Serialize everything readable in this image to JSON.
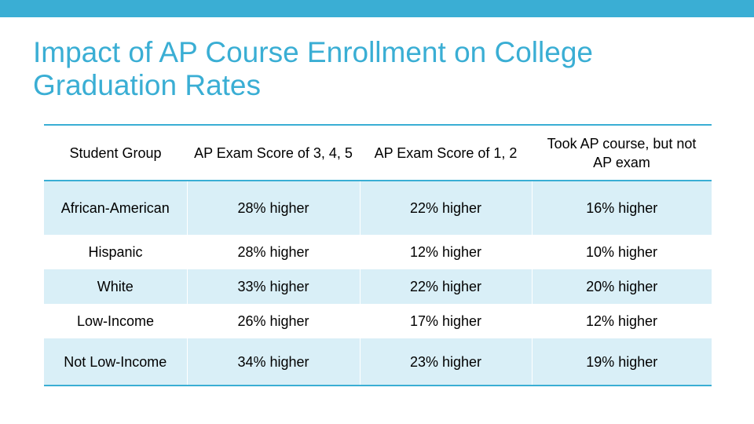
{
  "title": "Impact of AP Course Enrollment on College Graduation Rates",
  "colors": {
    "accent": "#3aaed4",
    "row_shade": "#d9eff7"
  },
  "table": {
    "headers": [
      "Student Group",
      "AP Exam Score of 3, 4, 5",
      "AP Exam Score of 1, 2",
      "Took AP course, but not AP exam"
    ],
    "rows": [
      [
        "African-American",
        "28% higher",
        "22% higher",
        "16% higher"
      ],
      [
        "Hispanic",
        "28% higher",
        "12% higher",
        "10% higher"
      ],
      [
        "White",
        "33% higher",
        "22% higher",
        "20% higher"
      ],
      [
        "Low-Income",
        "26% higher",
        "17% higher",
        "12% higher"
      ],
      [
        "Not Low-Income",
        "34% higher",
        "23% higher",
        "19% higher"
      ]
    ]
  }
}
